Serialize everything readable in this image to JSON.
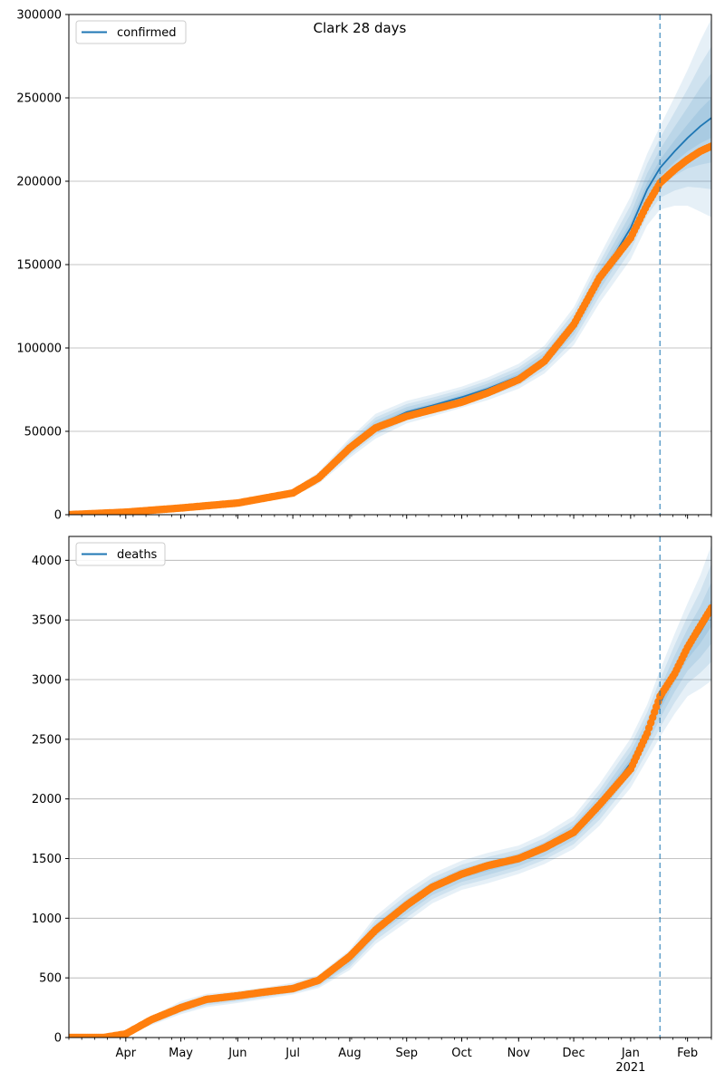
{
  "title": "Clark 28 days",
  "colors": {
    "model_line": "#1f77b4",
    "observed": "#ff7f0e",
    "band": "#1f77b4",
    "vline": "#1f77b4",
    "grid": "#b0b0b0"
  },
  "x_axis": {
    "months": [
      {
        "date": "2020-04-01",
        "label": "Apr"
      },
      {
        "date": "2020-05-01",
        "label": "May"
      },
      {
        "date": "2020-06-01",
        "label": "Jun"
      },
      {
        "date": "2020-07-01",
        "label": "Jul"
      },
      {
        "date": "2020-08-01",
        "label": "Aug"
      },
      {
        "date": "2020-09-01",
        "label": "Sep"
      },
      {
        "date": "2020-10-01",
        "label": "Oct"
      },
      {
        "date": "2020-11-01",
        "label": "Nov"
      },
      {
        "date": "2020-12-01",
        "label": "Dec"
      },
      {
        "date": "2021-01-01",
        "label": "Jan"
      },
      {
        "date": "2021-02-01",
        "label": "Feb"
      }
    ],
    "year_label": "2021",
    "range": [
      "2020-03-01",
      "2021-02-14"
    ]
  },
  "chart_data": [
    {
      "type": "line",
      "legend": [
        "confirmed"
      ],
      "legend_position": "top-left",
      "grid": "horizontal",
      "xlim": [
        "2020-03-01",
        "2021-02-14"
      ],
      "ylim": [
        0,
        300000
      ],
      "yticks": [
        0,
        50000,
        100000,
        150000,
        200000,
        250000,
        300000
      ],
      "ytick_labels": [
        "0",
        "50000",
        "100000",
        "150000",
        "200000",
        "250000",
        "300000"
      ],
      "forecast_start": "2021-01-17",
      "model": {
        "x": [
          "2020-03-01",
          "2020-04-01",
          "2020-05-01",
          "2020-06-01",
          "2020-07-01",
          "2020-07-15",
          "2020-08-01",
          "2020-08-15",
          "2020-09-01",
          "2020-09-15",
          "2020-10-01",
          "2020-10-15",
          "2020-11-01",
          "2020-11-15",
          "2020-12-01",
          "2020-12-15",
          "2021-01-01",
          "2021-01-10",
          "2021-01-17",
          "2021-01-25",
          "2021-02-01",
          "2021-02-08",
          "2021-02-14"
        ],
        "y": [
          0,
          1500,
          4000,
          7000,
          13000,
          22000,
          40000,
          53000,
          61500,
          65500,
          70500,
          75500,
          83000,
          93000,
          113000,
          141000,
          172000,
          195000,
          208000,
          218000,
          226000,
          233000,
          238000
        ],
        "band_widths": [
          0,
          0.16,
          0.16,
          0.16,
          0.16,
          0.16,
          0.15,
          0.14,
          0.11,
          0.1,
          0.09,
          0.09,
          0.09,
          0.09,
          0.1,
          0.1,
          0.11,
          0.11,
          0.12,
          0.15,
          0.18,
          0.22,
          0.25
        ]
      },
      "observed": {
        "x": [
          "2020-03-01",
          "2020-04-01",
          "2020-05-01",
          "2020-06-01",
          "2020-07-01",
          "2020-07-15",
          "2020-08-01",
          "2020-08-15",
          "2020-09-01",
          "2020-09-15",
          "2020-10-01",
          "2020-10-15",
          "2020-11-01",
          "2020-11-15",
          "2020-12-01",
          "2020-12-15",
          "2021-01-01",
          "2021-01-10",
          "2021-01-17",
          "2021-01-25",
          "2021-02-01",
          "2021-02-08",
          "2021-02-14"
        ],
        "y": [
          0,
          1500,
          4000,
          7000,
          13000,
          22000,
          40000,
          52000,
          59000,
          63000,
          67500,
          73000,
          81000,
          92000,
          114000,
          142000,
          166000,
          186000,
          199000,
          207000,
          213000,
          218000,
          221000
        ]
      }
    },
    {
      "type": "line",
      "legend": [
        "deaths"
      ],
      "legend_position": "top-left",
      "grid": "horizontal",
      "xlim": [
        "2020-03-01",
        "2021-02-14"
      ],
      "ylim": [
        0,
        4200
      ],
      "yticks": [
        0,
        500,
        1000,
        1500,
        2000,
        2500,
        3000,
        3500,
        4000
      ],
      "ytick_labels": [
        "0",
        "500",
        "1000",
        "1500",
        "2000",
        "2500",
        "3000",
        "3500",
        "4000"
      ],
      "forecast_start": "2021-01-17",
      "model": {
        "x": [
          "2020-03-01",
          "2020-03-20",
          "2020-04-01",
          "2020-04-15",
          "2020-05-01",
          "2020-05-15",
          "2020-06-01",
          "2020-06-15",
          "2020-07-01",
          "2020-07-15",
          "2020-08-01",
          "2020-08-15",
          "2020-09-01",
          "2020-09-15",
          "2020-10-01",
          "2020-10-15",
          "2020-11-01",
          "2020-11-15",
          "2020-12-01",
          "2020-12-15",
          "2021-01-01",
          "2021-01-10",
          "2021-01-17",
          "2021-01-25",
          "2021-02-01",
          "2021-02-08",
          "2021-02-14"
        ],
        "y": [
          0,
          0,
          30,
          140,
          250,
          310,
          340,
          370,
          410,
          470,
          650,
          900,
          1100,
          1250,
          1360,
          1420,
          1490,
          1580,
          1720,
          1950,
          2300,
          2560,
          2800,
          3050,
          3250,
          3400,
          3560
        ],
        "band_widths": [
          0,
          0.2,
          0.25,
          0.25,
          0.22,
          0.18,
          0.15,
          0.13,
          0.12,
          0.12,
          0.13,
          0.13,
          0.12,
          0.1,
          0.09,
          0.09,
          0.08,
          0.08,
          0.08,
          0.09,
          0.09,
          0.09,
          0.1,
          0.11,
          0.12,
          0.14,
          0.16
        ]
      },
      "observed": {
        "x": [
          "2020-03-01",
          "2020-03-20",
          "2020-04-01",
          "2020-04-15",
          "2020-05-01",
          "2020-05-15",
          "2020-06-01",
          "2020-06-15",
          "2020-07-01",
          "2020-07-15",
          "2020-08-01",
          "2020-08-15",
          "2020-09-01",
          "2020-09-15",
          "2020-10-01",
          "2020-10-15",
          "2020-11-01",
          "2020-11-15",
          "2020-12-01",
          "2020-12-15",
          "2021-01-01",
          "2021-01-10",
          "2021-01-17",
          "2021-01-25",
          "2021-02-01",
          "2021-02-08",
          "2021-02-14"
        ],
        "y": [
          0,
          0,
          30,
          150,
          250,
          320,
          350,
          380,
          410,
          480,
          680,
          900,
          1110,
          1260,
          1370,
          1440,
          1500,
          1590,
          1720,
          1950,
          2250,
          2550,
          2860,
          3050,
          3270,
          3450,
          3600
        ]
      }
    }
  ]
}
